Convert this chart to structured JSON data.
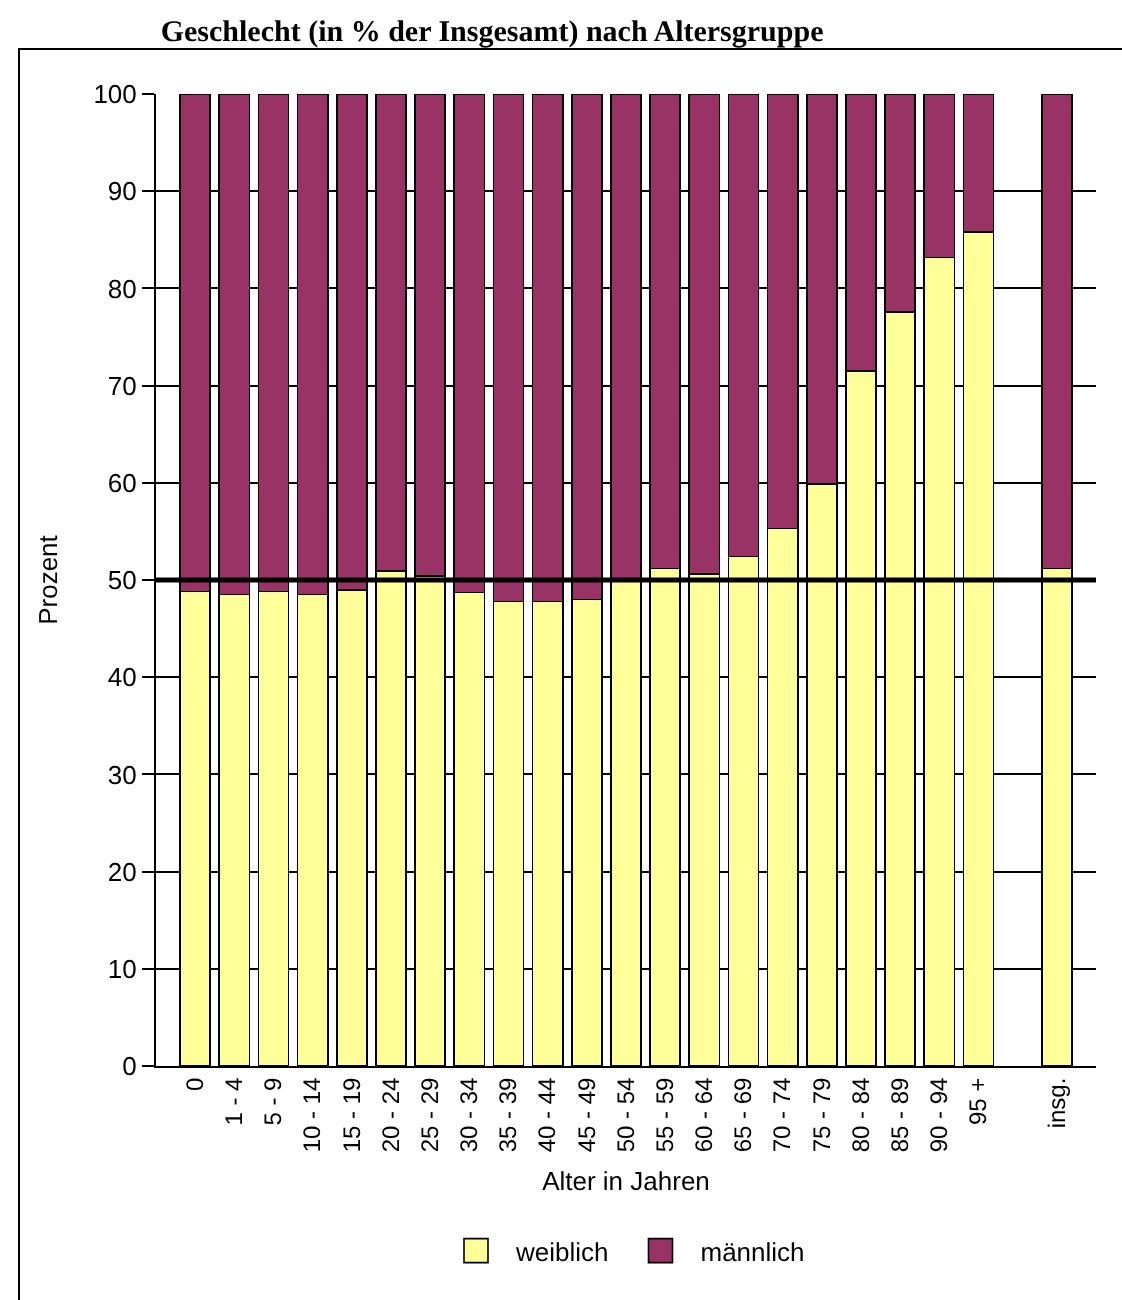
{
  "chart_data": {
    "type": "bar",
    "title": "Geschlecht (in % der Insgesamt) nach Altersgruppe",
    "xlabel": "Alter in Jahren",
    "ylabel": "Prozent",
    "categories": [
      "0",
      "1 - 4",
      "5 - 9",
      "10 - 14",
      "15 - 19",
      "20 - 24",
      "25 - 29",
      "30 - 34",
      "35 - 39",
      "40 - 44",
      "45 - 49",
      "50 - 54",
      "55 - 59",
      "60 - 64",
      "65 - 69",
      "70 - 74",
      "75 - 79",
      "80 - 84",
      "85 - 89",
      "90 - 94",
      "95 +",
      null,
      "insg."
    ],
    "stacked": true,
    "series": [
      {
        "name": "weiblich",
        "color": "#ffff99",
        "values": [
          48.8,
          48.5,
          48.8,
          48.5,
          49.0,
          50.9,
          50.4,
          48.7,
          47.8,
          47.8,
          48.0,
          50.0,
          51.2,
          50.6,
          52.4,
          55.3,
          59.9,
          71.5,
          77.6,
          83.2,
          85.8,
          null,
          51.2
        ]
      },
      {
        "name": "männlich",
        "color": "#993366",
        "values": [
          51.2,
          51.5,
          51.2,
          51.5,
          51.0,
          49.1,
          49.6,
          51.3,
          52.2,
          52.2,
          52.0,
          50.0,
          48.8,
          49.4,
          47.6,
          44.7,
          40.1,
          28.5,
          22.4,
          16.8,
          14.2,
          null,
          48.8
        ]
      }
    ],
    "ylim": [
      0,
      100
    ],
    "yticks": [
      0,
      10,
      20,
      30,
      40,
      50,
      60,
      70,
      80,
      90,
      100
    ],
    "grid": "y",
    "legend": "bottom",
    "ref_lines": [
      {
        "axis": "y",
        "value": 50,
        "color": "#000000"
      }
    ]
  }
}
